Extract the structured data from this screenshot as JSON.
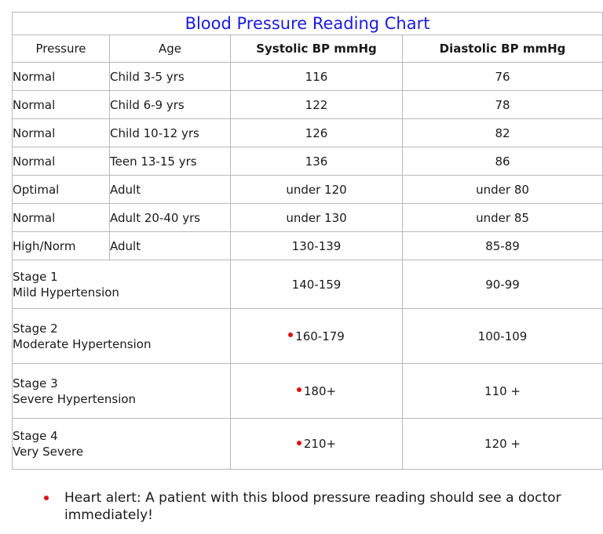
{
  "title": "Blood Pressure Reading Chart",
  "headers": {
    "pressure": "Pressure",
    "age": "Age",
    "systolic": "Systolic BP mmHg",
    "diastolic": "Diastolic BP mmHg"
  },
  "rows": [
    {
      "pressure": "Normal",
      "age": "Child 3-5 yrs",
      "systolic": "116",
      "diastolic": "76"
    },
    {
      "pressure": "Normal",
      "age": "Child 6-9 yrs",
      "systolic": "122",
      "diastolic": "78"
    },
    {
      "pressure": "Normal",
      "age": "Child 10-12 yrs",
      "systolic": "126",
      "diastolic": "82"
    },
    {
      "pressure": "Normal",
      "age": "Teen 13-15 yrs",
      "systolic": "136",
      "diastolic": "86"
    },
    {
      "pressure": "Optimal",
      "age": "Adult",
      "systolic": "under 120",
      "diastolic": "under 80"
    },
    {
      "pressure": "Normal",
      "age": "Adult 20-40 yrs",
      "systolic": "under 130",
      "diastolic": "under 85"
    },
    {
      "pressure": "High/Norm",
      "age": "Adult",
      "systolic": "130-139",
      "diastolic": "85-89"
    }
  ],
  "stages": [
    {
      "line1": "Stage 1",
      "line2": "Mild Hypertension",
      "systolic": "140-159",
      "diastolic": "90-99",
      "alert": false
    },
    {
      "line1": "Stage 2",
      "line2": "Moderate Hypertension",
      "systolic": "160-179",
      "diastolic": "100-109",
      "alert": true
    },
    {
      "line1": "Stage 3",
      "line2": "Severe Hypertension",
      "systolic": "180+",
      "diastolic": "110 +",
      "alert": true
    },
    {
      "line1": "Stage 4",
      "line2": "Very Severe",
      "systolic": "210+",
      "diastolic": "120 +",
      "alert": true
    }
  ],
  "note": "Heart alert: A patient with this blood pressure reading should see a doctor immediately!",
  "colors": {
    "title": "#1a1adc",
    "alert_dot": "#e01010",
    "border": "#b8b8b8"
  }
}
